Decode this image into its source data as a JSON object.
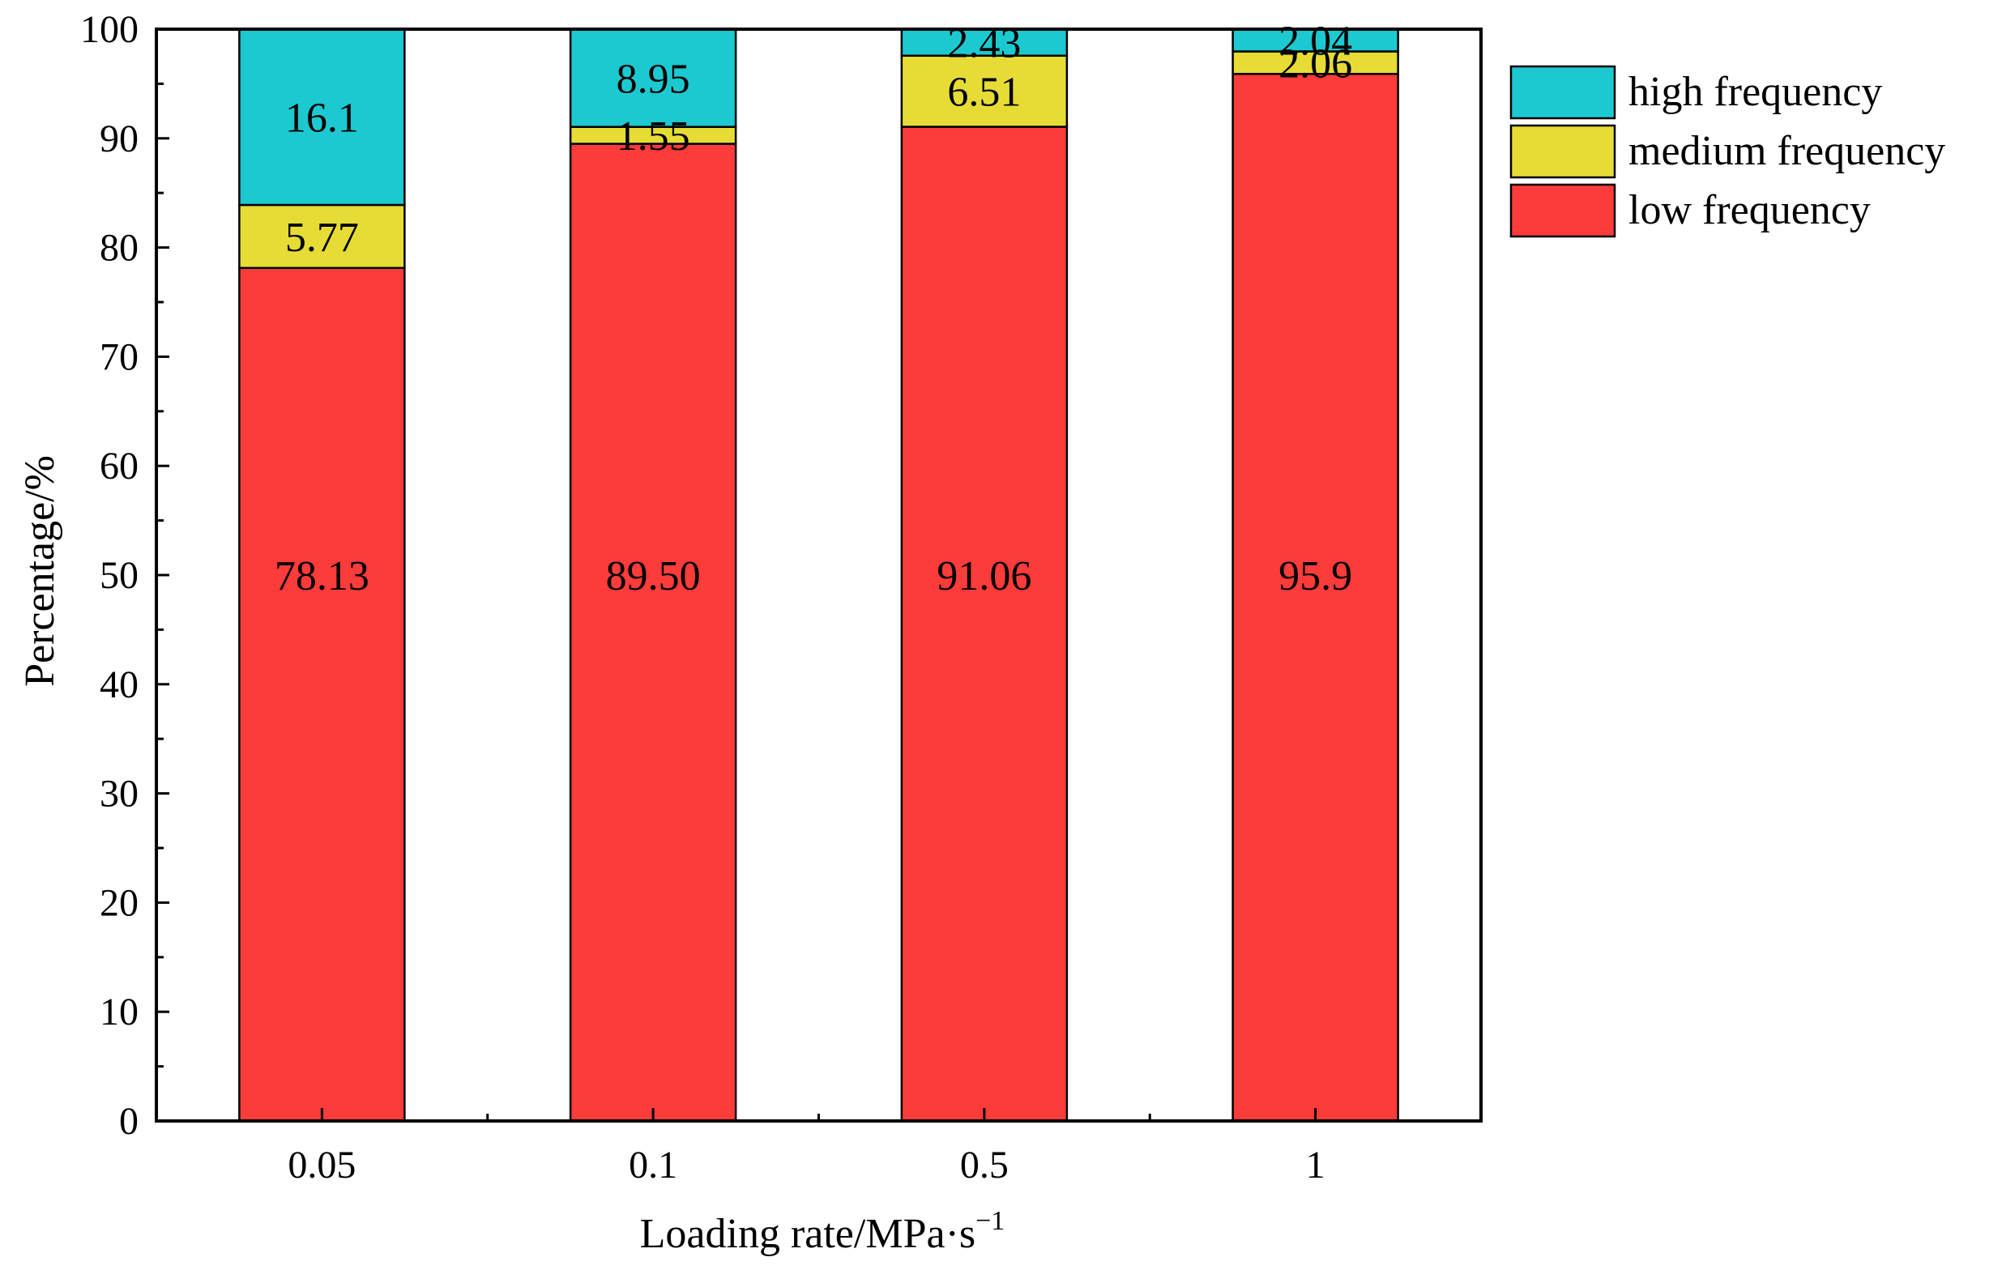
{
  "chart_data": {
    "type": "stacked-bar",
    "title": "",
    "xlabel": "Loading rate/MPa·s",
    "xlabel_superscript": "−1",
    "ylabel": "Percentage/%",
    "ylim": [
      0,
      100
    ],
    "yticks": [
      0,
      10,
      20,
      30,
      40,
      50,
      60,
      70,
      80,
      90,
      100
    ],
    "categories": [
      "0.05",
      "0.1",
      "0.5",
      "1"
    ],
    "series": [
      {
        "name": "low frequency",
        "color": "#fc3b3b",
        "values": [
          78.13,
          89.5,
          91.06,
          95.9
        ],
        "labels": [
          "78.13",
          "89.50",
          "91.06",
          "95.9"
        ]
      },
      {
        "name": "medium frequency",
        "color": "#e6dc35",
        "values": [
          5.77,
          1.55,
          6.51,
          2.06
        ],
        "labels": [
          "5.77",
          "1.55",
          "6.51",
          "2.06"
        ]
      },
      {
        "name": "high frequency",
        "color": "#1cc9d0",
        "values": [
          16.1,
          8.95,
          2.43,
          2.04
        ],
        "labels": [
          "16.1",
          "8.95",
          "2.43",
          "2.04"
        ]
      }
    ],
    "legend": {
      "placement": "top-right-outside",
      "order": [
        "high frequency",
        "medium frequency",
        "low frequency"
      ]
    },
    "grid": false
  }
}
